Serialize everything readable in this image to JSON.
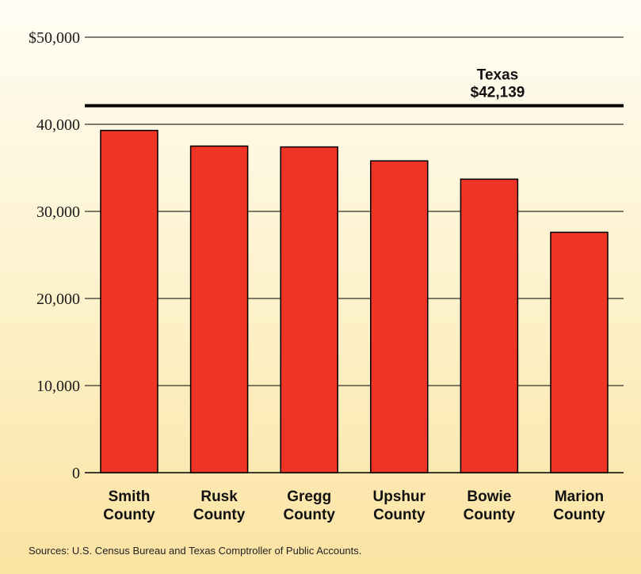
{
  "chart_data": {
    "type": "bar",
    "categories": [
      [
        "Smith",
        "County"
      ],
      [
        "Rusk",
        "County"
      ],
      [
        "Gregg",
        "County"
      ],
      [
        "Upshur",
        "County"
      ],
      [
        "Bowie",
        "County"
      ],
      [
        "Marion",
        "County"
      ]
    ],
    "values": [
      39300,
      37500,
      37400,
      35800,
      33700,
      27600
    ],
    "ylim": [
      0,
      50000
    ],
    "yticks": [
      0,
      10000,
      20000,
      30000,
      40000,
      50000
    ],
    "ytick_labels": [
      "0",
      "10,000",
      "20,000",
      "30,000",
      "40,000",
      "$50,000"
    ],
    "grid": true,
    "bar_color": "#ee3425",
    "reference_line": {
      "value": 42139,
      "label_line1": "Texas",
      "label_line2": "$42,139"
    }
  },
  "source_note": "Sources: U.S. Census Bureau and Texas Comptroller of Public Accounts."
}
